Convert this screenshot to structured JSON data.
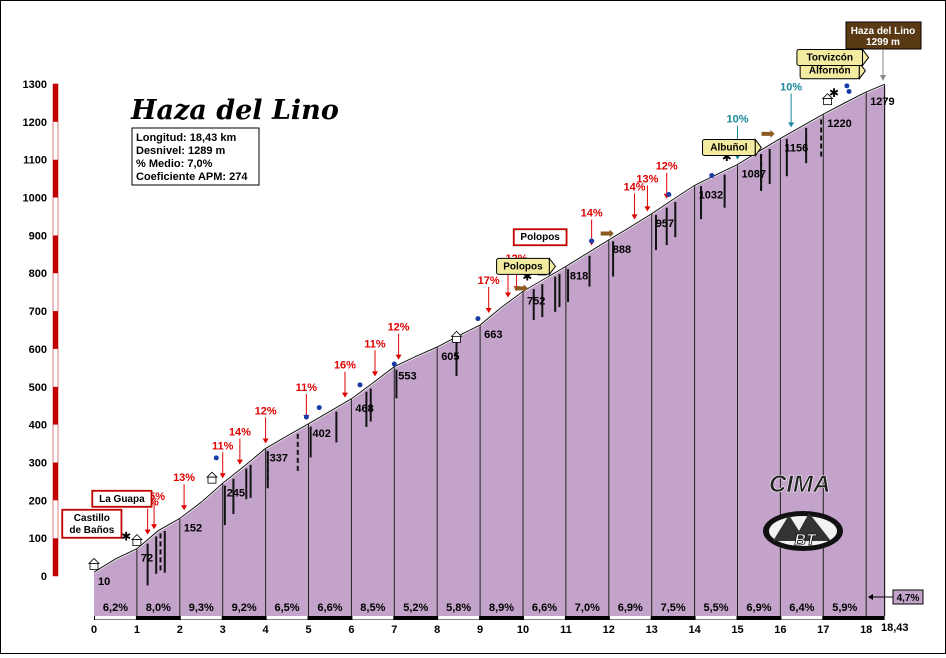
{
  "chart_data": {
    "type": "area",
    "title": "Haza del Lino",
    "stats": [
      "Longitud: 18,43 km",
      "Desnivel: 1289 m",
      "% Medio: 7,0%",
      "Coeficiente APM: 274"
    ],
    "summit_label": [
      "Haza del Lino",
      "1299 m"
    ],
    "xlim": [
      0,
      18.43
    ],
    "ylim": [
      0,
      1300
    ],
    "x_ticks": [
      "0",
      "1",
      "2",
      "3",
      "4",
      "5",
      "6",
      "7",
      "8",
      "9",
      "10",
      "11",
      "12",
      "13",
      "14",
      "15",
      "16",
      "17",
      "18"
    ],
    "x_end_label": "18,43",
    "y_ticks": [
      "0",
      "100",
      "200",
      "300",
      "400",
      "500",
      "600",
      "700",
      "800",
      "900",
      "1000",
      "1100",
      "1200",
      "1300"
    ],
    "profile": [
      {
        "x": 0,
        "y": 10
      },
      {
        "x": 0.5,
        "y": 45
      },
      {
        "x": 1,
        "y": 72
      },
      {
        "x": 1.5,
        "y": 120
      },
      {
        "x": 2,
        "y": 152
      },
      {
        "x": 2.5,
        "y": 195
      },
      {
        "x": 3,
        "y": 245
      },
      {
        "x": 3.5,
        "y": 290
      },
      {
        "x": 4,
        "y": 337
      },
      {
        "x": 4.5,
        "y": 370
      },
      {
        "x": 5,
        "y": 402
      },
      {
        "x": 5.5,
        "y": 435
      },
      {
        "x": 6,
        "y": 468
      },
      {
        "x": 6.5,
        "y": 510
      },
      {
        "x": 7,
        "y": 553
      },
      {
        "x": 7.5,
        "y": 580
      },
      {
        "x": 8,
        "y": 605
      },
      {
        "x": 8.5,
        "y": 635
      },
      {
        "x": 9,
        "y": 663
      },
      {
        "x": 9.5,
        "y": 710
      },
      {
        "x": 10,
        "y": 752
      },
      {
        "x": 10.5,
        "y": 785
      },
      {
        "x": 11,
        "y": 818
      },
      {
        "x": 11.5,
        "y": 853
      },
      {
        "x": 12,
        "y": 888
      },
      {
        "x": 12.5,
        "y": 922
      },
      {
        "x": 13,
        "y": 957
      },
      {
        "x": 13.5,
        "y": 995
      },
      {
        "x": 14,
        "y": 1032
      },
      {
        "x": 14.5,
        "y": 1060
      },
      {
        "x": 15,
        "y": 1087
      },
      {
        "x": 15.5,
        "y": 1122
      },
      {
        "x": 16,
        "y": 1156
      },
      {
        "x": 16.5,
        "y": 1188
      },
      {
        "x": 17,
        "y": 1220
      },
      {
        "x": 17.5,
        "y": 1250
      },
      {
        "x": 18,
        "y": 1279
      },
      {
        "x": 18.43,
        "y": 1299
      }
    ],
    "point_labels": [
      {
        "x": 0,
        "y": 10,
        "text": "10"
      },
      {
        "x": 1,
        "y": 72,
        "text": "72"
      },
      {
        "x": 2,
        "y": 152,
        "text": "152"
      },
      {
        "x": 3,
        "y": 245,
        "text": "245"
      },
      {
        "x": 4,
        "y": 337,
        "text": "337"
      },
      {
        "x": 5,
        "y": 402,
        "text": "402"
      },
      {
        "x": 6,
        "y": 468,
        "text": "468"
      },
      {
        "x": 7,
        "y": 553,
        "text": "553"
      },
      {
        "x": 8,
        "y": 605,
        "text": "605"
      },
      {
        "x": 9,
        "y": 663,
        "text": "663"
      },
      {
        "x": 10,
        "y": 752,
        "text": "752"
      },
      {
        "x": 11,
        "y": 818,
        "text": "818"
      },
      {
        "x": 12,
        "y": 888,
        "text": "888"
      },
      {
        "x": 13,
        "y": 957,
        "text": "957"
      },
      {
        "x": 14,
        "y": 1032,
        "text": "1032"
      },
      {
        "x": 15,
        "y": 1087,
        "text": "1087"
      },
      {
        "x": 16,
        "y": 1156,
        "text": "1156"
      },
      {
        "x": 17,
        "y": 1220,
        "text": "1220"
      },
      {
        "x": 18,
        "y": 1279,
        "text": "1279"
      }
    ],
    "segment_gradients": [
      "6,2%",
      "8,0%",
      "9,3%",
      "9,2%",
      "6,5%",
      "6,6%",
      "8,5%",
      "5,2%",
      "5,8%",
      "8,9%",
      "6,6%",
      "7,0%",
      "6,9%",
      "7,5%",
      "5,5%",
      "6,9%",
      "6,4%",
      "5,9%"
    ],
    "final_gradient": "4,7%",
    "ramp_labels": [
      {
        "x": 1.4,
        "text": "15%"
      },
      {
        "x": 1.25,
        "text": "20%"
      },
      {
        "x": 2.1,
        "text": "13%"
      },
      {
        "x": 3.0,
        "text": "11%"
      },
      {
        "x": 3.4,
        "text": "14%"
      },
      {
        "x": 4.0,
        "text": "12%"
      },
      {
        "x": 4.95,
        "text": "11%"
      },
      {
        "x": 5.85,
        "text": "16%"
      },
      {
        "x": 6.55,
        "text": "11%"
      },
      {
        "x": 7.1,
        "text": "12%"
      },
      {
        "x": 9.2,
        "text": "17%"
      },
      {
        "x": 9.85,
        "text": "12%"
      },
      {
        "x": 9.65,
        "text": "13%"
      },
      {
        "x": 11.6,
        "text": "14%"
      },
      {
        "x": 12.6,
        "text": "14%"
      },
      {
        "x": 12.9,
        "text": "13%"
      },
      {
        "x": 13.35,
        "text": "12%"
      }
    ],
    "easy_labels": [
      {
        "x": 15.0,
        "text": "10%"
      },
      {
        "x": 16.25,
        "text": "10%"
      }
    ],
    "place_signs": [
      {
        "text": [
          "Castillo",
          "de Baños"
        ],
        "x": -0.05,
        "y": 138,
        "style": "red"
      },
      {
        "text": [
          "La Guapa"
        ],
        "x": 0.65,
        "y": 204,
        "style": "red"
      },
      {
        "text": [
          "Polopos"
        ],
        "x": 10.4,
        "y": 895,
        "style": "red"
      },
      {
        "text": [
          "Polopos"
        ],
        "x": 10.0,
        "y": 818,
        "style": "yellow"
      },
      {
        "text": [
          "Albuñol"
        ],
        "x": 14.8,
        "y": 1132,
        "style": "yellow"
      },
      {
        "text": [
          "Alfornón"
        ],
        "x": 17.15,
        "y": 1335,
        "style": "yellow"
      },
      {
        "text": [
          "Torvizcón"
        ],
        "x": 17.15,
        "y": 1370,
        "style": "yellow"
      }
    ],
    "logo": "CIMA BT",
    "legend": "none",
    "grid": "vertical lines every km"
  }
}
